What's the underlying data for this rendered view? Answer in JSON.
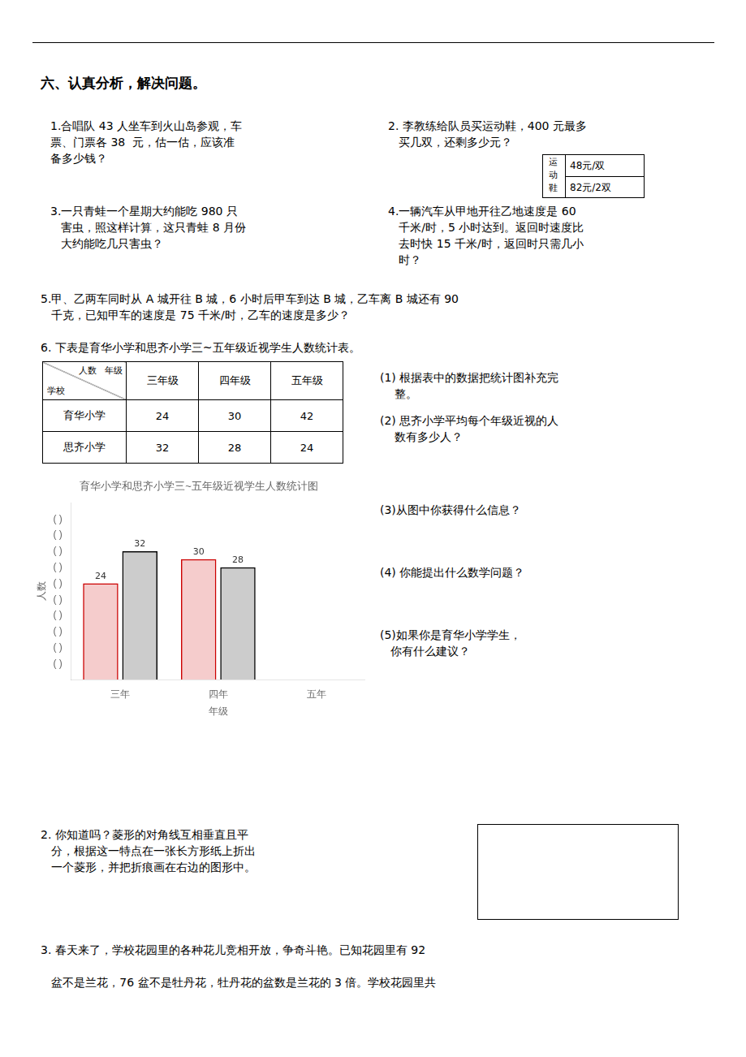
{
  "chart_data": [
    {
      "type": "bar",
      "title": "育华小学和思齐小学三~五年级近视学生人数统计图",
      "xlabel": "年级",
      "ylabel": "人数",
      "categories": [
        "三年",
        "四年",
        "五年"
      ],
      "series": [
        {
          "name": "育华小学",
          "color": "#cc0000",
          "values": [
            24,
            30,
            null
          ]
        },
        {
          "name": "思齐小学",
          "color": "#000000",
          "values": [
            32,
            28,
            null
          ]
        }
      ],
      "ylim": [
        0,
        44
      ],
      "yticks": [
        {
          "value": 4,
          "label": "( )"
        },
        {
          "value": 8,
          "label": "( )"
        },
        {
          "value": 12,
          "label": "( )"
        },
        {
          "value": 16,
          "label": "( )"
        },
        {
          "value": 20,
          "label": "( )"
        },
        {
          "value": 24,
          "label": "( )"
        },
        {
          "value": 28,
          "label": "( )"
        },
        {
          "value": 32,
          "label": "( )"
        },
        {
          "value": 36,
          "label": "( )"
        },
        {
          "value": 40,
          "label": "( )"
        }
      ],
      "grid": false,
      "data_labels": true,
      "annotations": [
        "六、认真分析，解决问题。",
        "1.合唱队 43 人坐车到火山岛参观，车\n票、门票各 38  元，估一估，应该准\n备多少钱？",
        "2. 李教练给队员买运动鞋，400 元最多\n   买几双，还剩多少元？",
        "运\n动\n鞋",
        "48元/双",
        "82元/2双",
        "3.一只青蛙一个星期大约能吃 980 只\n   害虫，照这样计算，这只青蛙 8 月份\n   大约能吃几只害虫？",
        "4.一辆汽车从甲地开往乙地速度是 60\n   千米/时，5 小时达到。返回时速度比\n   去时快 15 千米/时，返回时只需几小\n   时？",
        "5.甲、乙两车同时从 A 城开往 B 城，6 小时后甲车到达 B 城，乙车离 B 城还有 90\n   千克，已知甲车的速度是 75 千米/时，乙车的速度是多少？",
        "6. 下表是育华小学和思齐小学三~五年级近视学生人数统计表。",
        "(1) 根据表中的数据把统计图补充完\n    整。",
        "(2) 思齐小学平均每个年级近视的人\n    数有多少人？",
        "(3)从图中你获得什么信息？",
        "(4) 你能提出什么数学问题？",
        "(5)如果你是育华小学学生，\n   你有什么建议？",
        "2. 你知道吗？菱形的对角线互相垂直且平\n   分，根据这一特点在一张长方形纸上折出\n   一个菱形，并把折痕画在右边的图形中。",
        "3. 春天来了，学校花园里的各种花儿竞相开放，争奇斗艳。已知花园里有 92\n\n   盆不是兰花，76 盆不是牡丹花，牡丹花的盆数是兰花的 3 倍。学校花园里共"
      ]
    },
    {
      "type": "table",
      "categories": [
        "三年级",
        "四年级",
        "五年级"
      ],
      "series": [
        {
          "name": "育华小学",
          "values": [
            24,
            30,
            42
          ]
        },
        {
          "name": "思齐小学",
          "values": [
            32,
            28,
            24
          ]
        }
      ],
      "annotations": [
        "人数   年级",
        "学校"
      ]
    }
  ]
}
